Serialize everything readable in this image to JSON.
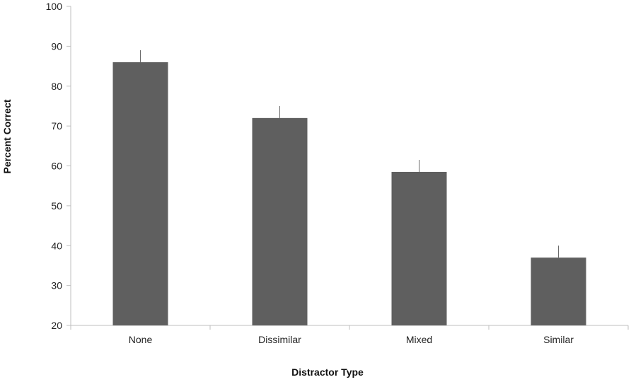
{
  "chart_data": {
    "type": "bar",
    "title": "",
    "xlabel": "Distractor Type",
    "ylabel": "Percent Correct",
    "categories": [
      "None",
      "Dissimilar",
      "Mixed",
      "Similar"
    ],
    "values": [
      86,
      72,
      58.5,
      37
    ],
    "error_upper": [
      89,
      75,
      61.5,
      40
    ],
    "ylim": [
      20,
      100
    ],
    "yticks": [
      20,
      30,
      40,
      50,
      60,
      70,
      80,
      90,
      100
    ],
    "ytick_labels": [
      "20",
      "30",
      "40",
      "50",
      "60",
      "70",
      "80",
      "90",
      "100"
    ],
    "grid": false,
    "legend": "none",
    "colors": {
      "bar": "#5f5f5f",
      "axis": "#bfbfbf",
      "error_bar": "#6a6a6a"
    }
  }
}
